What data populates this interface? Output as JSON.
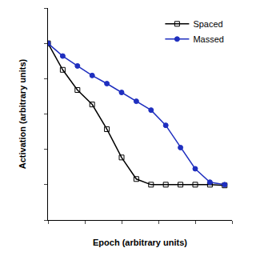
{
  "chart_data": {
    "type": "line",
    "x_label": "Epoch (arbitrary units)",
    "y_label": "Activation (arbitrary units)",
    "x": [
      0,
      1,
      2,
      3,
      4,
      5,
      6,
      7,
      8,
      9,
      10,
      11,
      12
    ],
    "series": [
      {
        "name": "Spaced",
        "color": "#000000",
        "marker": "square-open",
        "line_style": "solid",
        "values": [
          5,
          4.25,
          3.68,
          3.27,
          2.57,
          1.77,
          1.16,
          1.0,
          1.0,
          1.0,
          1.0,
          1.0,
          0.98
        ]
      },
      {
        "name": "Massed",
        "color": "#1f2fbf",
        "marker": "circle",
        "line_style": "solid",
        "values": [
          5,
          4.64,
          4.36,
          4.09,
          3.86,
          3.61,
          3.36,
          3.11,
          2.68,
          2.05,
          1.45,
          1.07,
          1.0
        ]
      }
    ],
    "xlim": [
      0,
      12.5
    ],
    "xticks": [
      0,
      2.5,
      5,
      7.5,
      10,
      12.5
    ],
    "ylim": [
      0,
      6
    ],
    "yticks": [
      0,
      1,
      2,
      3,
      4,
      5,
      6
    ],
    "grid": false,
    "legend": "top right",
    "tick_labels": false
  }
}
